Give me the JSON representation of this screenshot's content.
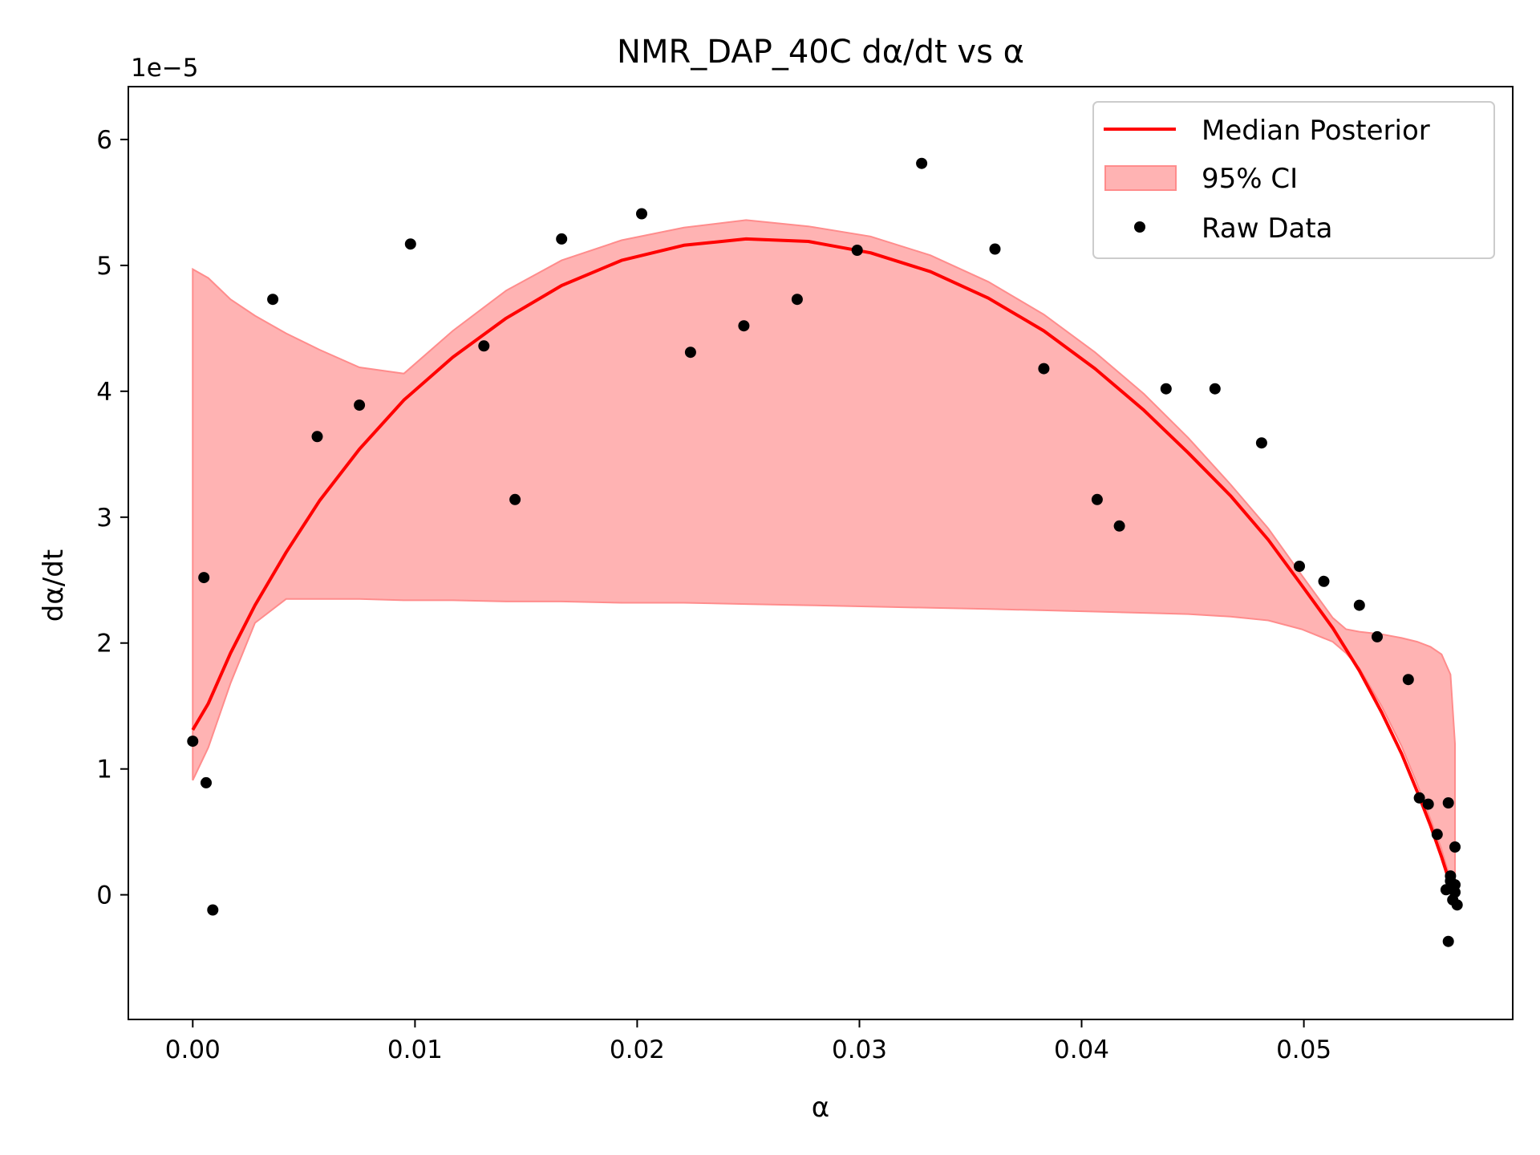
{
  "chart_data": {
    "type": "line",
    "title": "NMR_DAP_40C dα/dt vs α",
    "xlabel": "α",
    "ylabel": "dα/dt",
    "y_offset_label": "1e−5",
    "y_multiplier": 1e-05,
    "xlim": [
      -0.0029,
      0.0594
    ],
    "ylim": [
      -0.99,
      6.42
    ],
    "xticks": [
      0.0,
      0.01,
      0.02,
      0.03,
      0.04,
      0.05
    ],
    "xtick_labels": [
      "0.00",
      "0.01",
      "0.02",
      "0.03",
      "0.04",
      "0.05"
    ],
    "yticks": [
      0,
      1,
      2,
      3,
      4,
      5,
      6
    ],
    "ytick_labels": [
      "0",
      "1",
      "2",
      "3",
      "4",
      "5",
      "6"
    ],
    "grid": false,
    "legend_position": "top-right",
    "colors": {
      "median": "#ff0000",
      "ci_fill": "#ffb3b3",
      "ci_edge": "#ff8c8c",
      "raw": "#000000"
    },
    "series": [
      {
        "name": "Median Posterior",
        "kind": "line",
        "x": [
          0.0,
          0.0007,
          0.0017,
          0.0028,
          0.0042,
          0.0057,
          0.0075,
          0.0095,
          0.0117,
          0.0141,
          0.0166,
          0.0193,
          0.0221,
          0.0249,
          0.0277,
          0.0305,
          0.0332,
          0.0358,
          0.0383,
          0.0406,
          0.0428,
          0.0448,
          0.0467,
          0.0484,
          0.0499,
          0.0513,
          0.0525,
          0.0535,
          0.0544,
          0.0551,
          0.0557,
          0.0562,
          0.0566
        ],
        "y": [
          1.31,
          1.52,
          1.92,
          2.3,
          2.72,
          3.13,
          3.54,
          3.93,
          4.27,
          4.58,
          4.84,
          5.04,
          5.16,
          5.21,
          5.19,
          5.1,
          4.95,
          4.74,
          4.48,
          4.18,
          3.85,
          3.51,
          3.17,
          2.82,
          2.46,
          2.12,
          1.78,
          1.45,
          1.12,
          0.82,
          0.55,
          0.3,
          0.08
        ]
      },
      {
        "name": "95% CI",
        "kind": "band",
        "x": [
          0.0,
          0.0007,
          0.0017,
          0.0028,
          0.0042,
          0.0057,
          0.0075,
          0.0095,
          0.0117,
          0.0141,
          0.0166,
          0.0193,
          0.0221,
          0.0249,
          0.0277,
          0.0305,
          0.0332,
          0.0358,
          0.0383,
          0.0406,
          0.0428,
          0.0448,
          0.0467,
          0.0484,
          0.0499,
          0.0513,
          0.0519,
          0.0525,
          0.0535,
          0.0544,
          0.0551,
          0.0557,
          0.0562,
          0.0566,
          0.0568
        ],
        "upper": [
          4.97,
          4.9,
          4.73,
          4.6,
          4.46,
          4.33,
          4.19,
          4.14,
          4.48,
          4.8,
          5.04,
          5.2,
          5.3,
          5.36,
          5.31,
          5.23,
          5.08,
          4.87,
          4.61,
          4.31,
          3.98,
          3.63,
          3.26,
          2.91,
          2.54,
          2.2,
          2.11,
          2.09,
          2.07,
          2.04,
          2.01,
          1.97,
          1.91,
          1.75,
          1.2
        ],
        "lower": [
          0.91,
          1.17,
          1.68,
          2.16,
          2.35,
          2.35,
          2.35,
          2.34,
          2.34,
          2.33,
          2.33,
          2.32,
          2.32,
          2.31,
          2.3,
          2.29,
          2.28,
          2.27,
          2.26,
          2.25,
          2.24,
          2.23,
          2.21,
          2.18,
          2.11,
          2.01,
          1.92,
          1.8,
          1.5,
          1.18,
          0.88,
          0.6,
          0.36,
          0.12,
          0.05
        ]
      },
      {
        "name": "Raw Data",
        "kind": "scatter",
        "points": [
          [
            0.0,
            1.22
          ],
          [
            0.0005,
            2.52
          ],
          [
            0.0006,
            0.89
          ],
          [
            0.0009,
            -0.12
          ],
          [
            0.0036,
            4.73
          ],
          [
            0.0056,
            3.64
          ],
          [
            0.0075,
            3.89
          ],
          [
            0.0098,
            5.17
          ],
          [
            0.0131,
            4.36
          ],
          [
            0.0145,
            3.14
          ],
          [
            0.0166,
            5.21
          ],
          [
            0.0202,
            5.41
          ],
          [
            0.0224,
            4.31
          ],
          [
            0.0248,
            4.52
          ],
          [
            0.0272,
            4.73
          ],
          [
            0.0299,
            5.12
          ],
          [
            0.0328,
            5.81
          ],
          [
            0.0361,
            5.13
          ],
          [
            0.0383,
            4.18
          ],
          [
            0.0407,
            3.14
          ],
          [
            0.0417,
            2.93
          ],
          [
            0.0438,
            4.02
          ],
          [
            0.046,
            4.02
          ],
          [
            0.0481,
            3.59
          ],
          [
            0.0498,
            2.61
          ],
          [
            0.0509,
            2.49
          ],
          [
            0.0525,
            2.3
          ],
          [
            0.0533,
            2.05
          ],
          [
            0.0547,
            1.71
          ],
          [
            0.0552,
            0.77
          ],
          [
            0.0556,
            0.72
          ],
          [
            0.056,
            0.48
          ],
          [
            0.0565,
            0.73
          ],
          [
            0.0568,
            0.38
          ],
          [
            0.0564,
            0.04
          ],
          [
            0.0566,
            0.11
          ],
          [
            0.0567,
            -0.04
          ],
          [
            0.0568,
            0.02
          ],
          [
            0.0569,
            -0.08
          ],
          [
            0.0566,
            0.15
          ],
          [
            0.0565,
            -0.37
          ],
          [
            0.0568,
            0.08
          ]
        ]
      }
    ]
  }
}
